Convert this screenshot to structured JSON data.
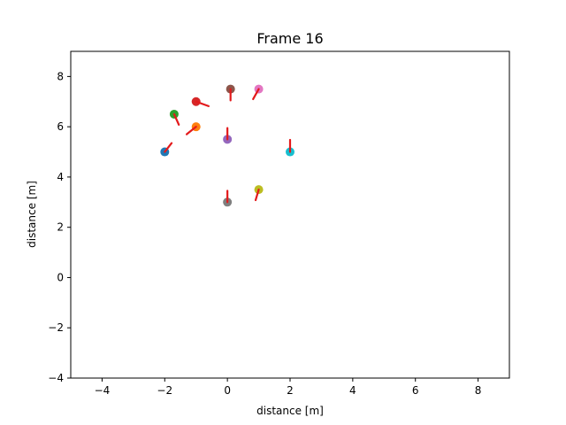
{
  "chart_data": {
    "type": "scatter",
    "title": "Frame 16",
    "xlabel": "distance [m]",
    "ylabel": "distance [m]",
    "xlim": [
      -5,
      9
    ],
    "ylim": [
      -4,
      9
    ],
    "xticks": [
      -4,
      -2,
      0,
      2,
      4,
      6,
      8
    ],
    "yticks": [
      -4,
      -2,
      0,
      2,
      4,
      6,
      8
    ],
    "xtick_labels": [
      "−4",
      "−2",
      "0",
      "2",
      "4",
      "6",
      "8"
    ],
    "ytick_labels": [
      "−4",
      "−2",
      "0",
      "2",
      "4",
      "6",
      "8"
    ],
    "grid": false,
    "legend": "none",
    "heading_color": "#e31a1c",
    "points": [
      {
        "x": -2.0,
        "y": 5.0,
        "color": "#1f77b4",
        "heading_to": [
          -1.78,
          5.35
        ]
      },
      {
        "x": -1.0,
        "y": 6.0,
        "color": "#ff7f0e",
        "heading_to": [
          -1.3,
          5.7
        ]
      },
      {
        "x": -1.7,
        "y": 6.5,
        "color": "#2ca02c",
        "heading_to": [
          -1.55,
          6.08
        ]
      },
      {
        "x": -1.0,
        "y": 7.0,
        "color": "#d62728",
        "heading_to": [
          -0.6,
          6.82
        ]
      },
      {
        "x": 0.0,
        "y": 5.5,
        "color": "#9467bd",
        "heading_to": [
          0.0,
          5.95
        ]
      },
      {
        "x": 0.1,
        "y": 7.5,
        "color": "#8c564b",
        "heading_to": [
          0.1,
          7.05
        ]
      },
      {
        "x": 1.0,
        "y": 7.5,
        "color": "#e377c2",
        "heading_to": [
          0.82,
          7.1
        ]
      },
      {
        "x": 0.0,
        "y": 3.0,
        "color": "#7f7f7f",
        "heading_to": [
          0.0,
          3.45
        ]
      },
      {
        "x": 1.0,
        "y": 3.5,
        "color": "#bcbd22",
        "heading_to": [
          0.9,
          3.08
        ]
      },
      {
        "x": 2.0,
        "y": 5.0,
        "color": "#17becf",
        "heading_to": [
          2.0,
          5.48
        ]
      }
    ]
  }
}
